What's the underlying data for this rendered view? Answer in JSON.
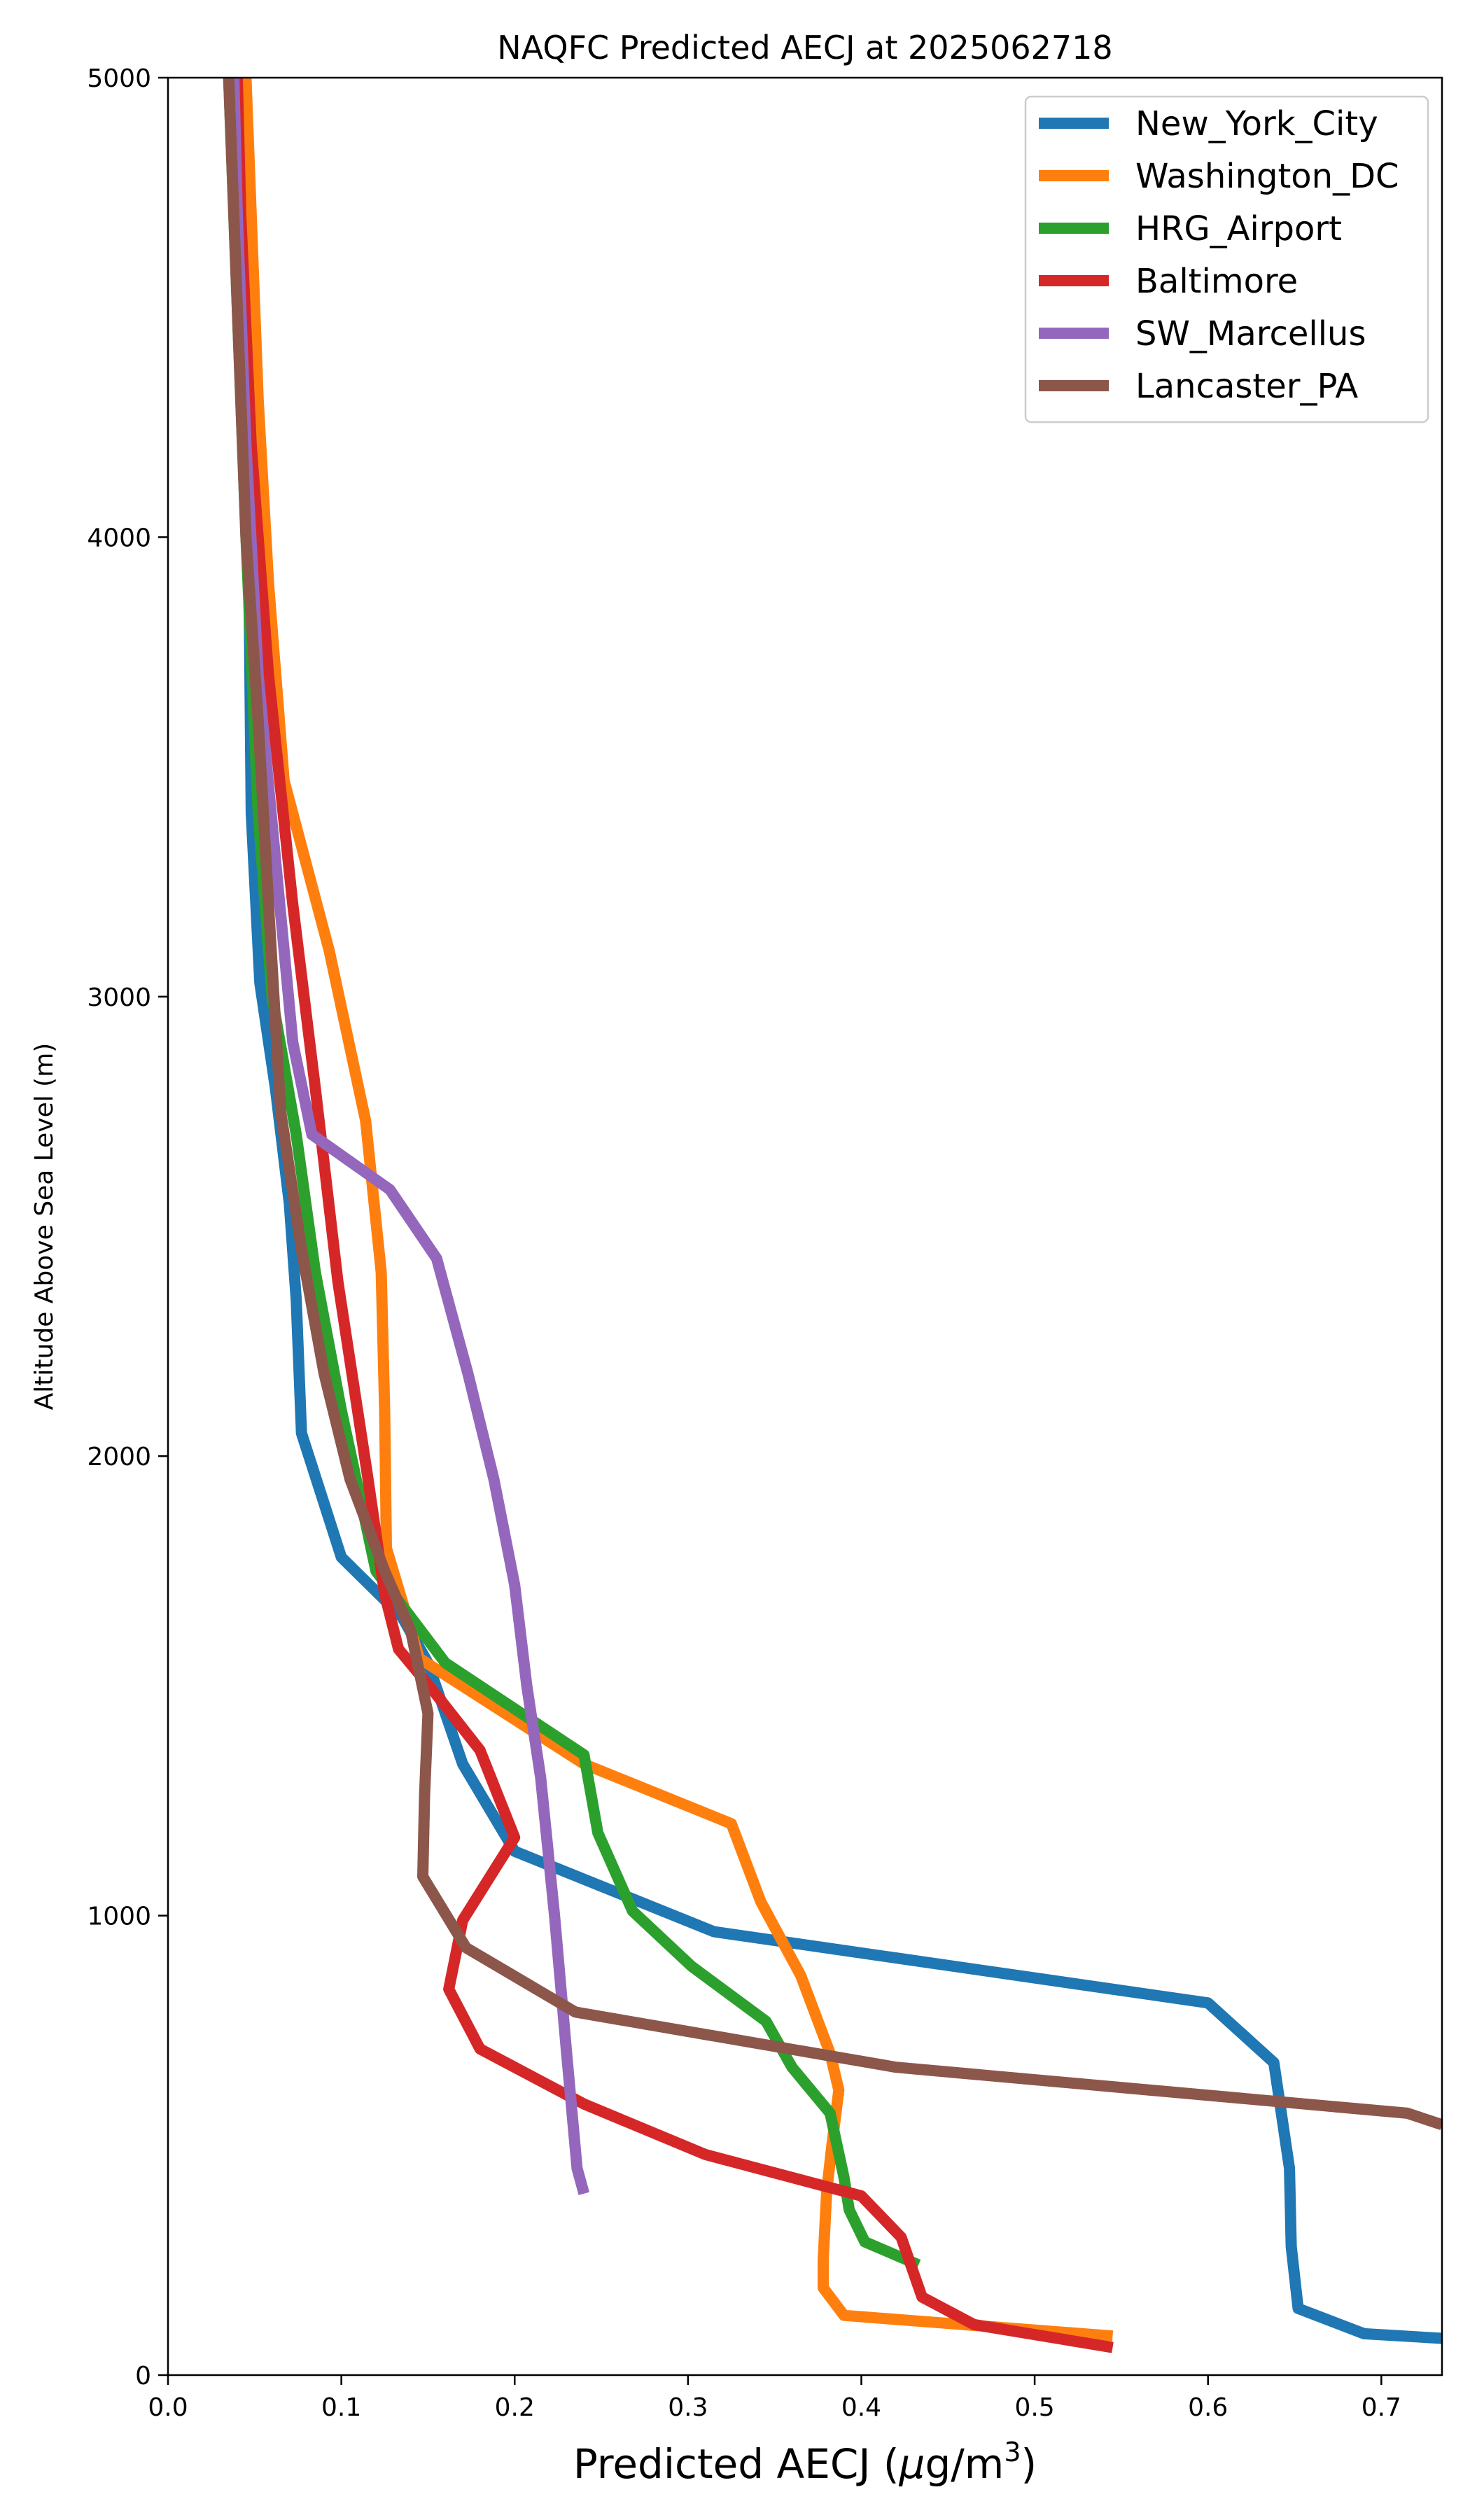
{
  "chart_data": {
    "type": "line",
    "title": "NAQFC Predicted AECJ at 2025062718",
    "xlabel_main": "Predicted AECJ (",
    "xlabel_mu": "μ",
    "xlabel_unit": "g/m",
    "xlabel_sup": "3",
    "xlabel_close": ")",
    "ylabel": "Altitude Above Sea Level (m)",
    "xlim": [
      0,
      0.735
    ],
    "ylim": [
      0,
      5000
    ],
    "xticks": [
      0.0,
      0.1,
      0.2,
      0.3,
      0.4,
      0.5,
      0.6,
      0.7
    ],
    "xtick_labels": [
      "0.0",
      "0.1",
      "0.2",
      "0.3",
      "0.4",
      "0.5",
      "0.6",
      "0.7"
    ],
    "yticks": [
      0,
      1000,
      2000,
      3000,
      4000,
      5000
    ],
    "ytick_labels": [
      "0",
      "1000",
      "2000",
      "3000",
      "4000",
      "5000"
    ],
    "grid": false,
    "legend_position": "top-right",
    "series": [
      {
        "name": "New_York_City",
        "color": "#1f77b4",
        "points": [
          [
            0.735,
            80
          ],
          [
            0.69,
            90
          ],
          [
            0.652,
            145
          ],
          [
            0.648,
            280
          ],
          [
            0.647,
            450
          ],
          [
            0.638,
            680
          ],
          [
            0.6,
            810
          ],
          [
            0.315,
            965
          ],
          [
            0.2,
            1140
          ],
          [
            0.17,
            1330
          ],
          [
            0.15,
            1550
          ],
          [
            0.135,
            1650
          ],
          [
            0.1,
            1780
          ],
          [
            0.077,
            2050
          ],
          [
            0.074,
            2340
          ],
          [
            0.07,
            2550
          ],
          [
            0.062,
            2800
          ],
          [
            0.053,
            3030
          ],
          [
            0.048,
            3400
          ],
          [
            0.047,
            3800
          ],
          [
            0.045,
            4200
          ],
          [
            0.042,
            4600
          ],
          [
            0.04,
            5000
          ]
        ]
      },
      {
        "name": "Washington_DC",
        "color": "#ff7f0e",
        "points": [
          [
            0.545,
            85
          ],
          [
            0.39,
            130
          ],
          [
            0.378,
            190
          ],
          [
            0.378,
            250
          ],
          [
            0.38,
            400
          ],
          [
            0.383,
            500
          ],
          [
            0.387,
            620
          ],
          [
            0.382,
            700
          ],
          [
            0.365,
            870
          ],
          [
            0.342,
            1030
          ],
          [
            0.325,
            1200
          ],
          [
            0.24,
            1330
          ],
          [
            0.145,
            1560
          ],
          [
            0.126,
            1800
          ],
          [
            0.125,
            2100
          ],
          [
            0.123,
            2400
          ],
          [
            0.114,
            2730
          ],
          [
            0.093,
            3100
          ],
          [
            0.067,
            3470
          ],
          [
            0.058,
            3900
          ],
          [
            0.052,
            4300
          ],
          [
            0.048,
            4700
          ],
          [
            0.045,
            5000
          ]
        ]
      },
      {
        "name": "HRG_Airport",
        "color": "#2ca02c",
        "points": [
          [
            0.433,
            240
          ],
          [
            0.402,
            290
          ],
          [
            0.393,
            360
          ],
          [
            0.39,
            430
          ],
          [
            0.382,
            570
          ],
          [
            0.36,
            670
          ],
          [
            0.345,
            770
          ],
          [
            0.302,
            890
          ],
          [
            0.268,
            1010
          ],
          [
            0.248,
            1180
          ],
          [
            0.24,
            1350
          ],
          [
            0.16,
            1550
          ],
          [
            0.12,
            1750
          ],
          [
            0.1,
            2100
          ],
          [
            0.085,
            2400
          ],
          [
            0.074,
            2700
          ],
          [
            0.06,
            3000
          ],
          [
            0.052,
            3400
          ],
          [
            0.045,
            4000
          ],
          [
            0.04,
            4500
          ],
          [
            0.035,
            5000
          ]
        ]
      },
      {
        "name": "Baltimore",
        "color": "#d62728",
        "points": [
          [
            0.545,
            60
          ],
          [
            0.465,
            110
          ],
          [
            0.435,
            170
          ],
          [
            0.423,
            300
          ],
          [
            0.4,
            390
          ],
          [
            0.31,
            480
          ],
          [
            0.24,
            590
          ],
          [
            0.18,
            710
          ],
          [
            0.162,
            840
          ],
          [
            0.17,
            990
          ],
          [
            0.2,
            1170
          ],
          [
            0.18,
            1360
          ],
          [
            0.155,
            1480
          ],
          [
            0.133,
            1580
          ],
          [
            0.125,
            1700
          ],
          [
            0.115,
            1960
          ],
          [
            0.098,
            2380
          ],
          [
            0.085,
            2800
          ],
          [
            0.072,
            3200
          ],
          [
            0.058,
            3700
          ],
          [
            0.048,
            4200
          ],
          [
            0.042,
            4700
          ],
          [
            0.04,
            5000
          ]
        ]
      },
      {
        "name": "SW_Marcellus",
        "color": "#9467bd",
        "points": [
          [
            0.24,
            395
          ],
          [
            0.236,
            450
          ],
          [
            0.23,
            700
          ],
          [
            0.223,
            1000
          ],
          [
            0.215,
            1300
          ],
          [
            0.207,
            1500
          ],
          [
            0.2,
            1720
          ],
          [
            0.188,
            1950
          ],
          [
            0.173,
            2180
          ],
          [
            0.155,
            2430
          ],
          [
            0.128,
            2580
          ],
          [
            0.083,
            2700
          ],
          [
            0.072,
            2900
          ],
          [
            0.062,
            3300
          ],
          [
            0.052,
            3700
          ],
          [
            0.045,
            4200
          ],
          [
            0.04,
            4700
          ],
          [
            0.038,
            5000
          ]
        ]
      },
      {
        "name": "Lancaster_PA",
        "color": "#8c564b",
        "points": [
          [
            0.735,
            545
          ],
          [
            0.715,
            570
          ],
          [
            0.42,
            670
          ],
          [
            0.235,
            790
          ],
          [
            0.172,
            930
          ],
          [
            0.147,
            1085
          ],
          [
            0.148,
            1260
          ],
          [
            0.15,
            1440
          ],
          [
            0.14,
            1620
          ],
          [
            0.125,
            1750
          ],
          [
            0.105,
            1950
          ],
          [
            0.09,
            2180
          ],
          [
            0.077,
            2450
          ],
          [
            0.065,
            2750
          ],
          [
            0.058,
            3200
          ],
          [
            0.052,
            3600
          ],
          [
            0.045,
            4000
          ],
          [
            0.04,
            4500
          ],
          [
            0.035,
            5000
          ]
        ]
      }
    ]
  }
}
